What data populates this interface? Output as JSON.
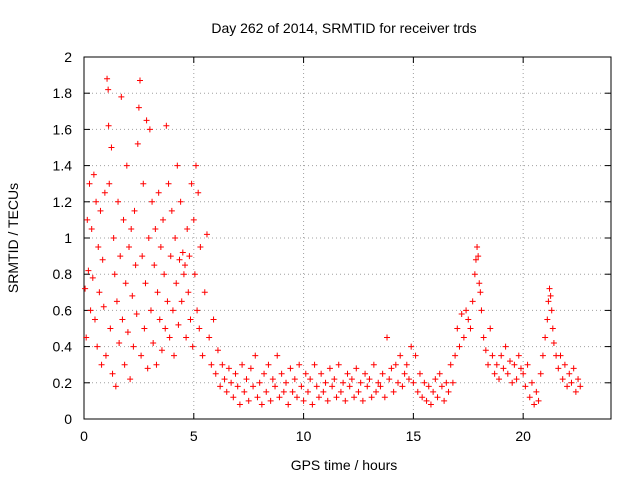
{
  "chart_data": {
    "type": "scatter",
    "title": "Day 262 of 2014, SRMTID for receiver trds",
    "xlabel": "GPS time / hours",
    "ylabel": "SRMTID / TECUs",
    "xlim": [
      0,
      24
    ],
    "ylim": [
      0,
      2
    ],
    "xticks": [
      0,
      5,
      10,
      15,
      20
    ],
    "yticks": [
      0,
      0.2,
      0.4,
      0.6,
      0.8,
      1,
      1.2,
      1.4,
      1.6,
      1.8,
      2
    ],
    "xtick_labels": [
      "0",
      "5",
      "10",
      "15",
      "20"
    ],
    "ytick_labels": [
      "0",
      "0.2",
      "0.4",
      "0.6",
      "0.8",
      "1",
      "1.2",
      "1.4",
      "1.6",
      "1.8",
      "2"
    ],
    "grid": true,
    "marker": "+",
    "color": "#ff0000",
    "series": [
      {
        "name": "SRMTID",
        "points": [
          [
            0.05,
            0.72
          ],
          [
            0.1,
            0.45
          ],
          [
            0.15,
            1.1
          ],
          [
            0.2,
            0.82
          ],
          [
            0.25,
            1.3
          ],
          [
            0.3,
            0.6
          ],
          [
            0.35,
            1.05
          ],
          [
            0.4,
            0.78
          ],
          [
            0.45,
            1.35
          ],
          [
            0.5,
            0.55
          ],
          [
            0.55,
            1.2
          ],
          [
            0.6,
            0.4
          ],
          [
            0.65,
            0.95
          ],
          [
            0.7,
            0.7
          ],
          [
            0.75,
            1.15
          ],
          [
            0.8,
            0.3
          ],
          [
            0.85,
            0.88
          ],
          [
            0.9,
            0.62
          ],
          [
            0.95,
            1.25
          ],
          [
            1.0,
            0.35
          ],
          [
            1.05,
            1.88
          ],
          [
            1.1,
            1.82
          ],
          [
            1.12,
            1.62
          ],
          [
            1.15,
            1.3
          ],
          [
            1.2,
            0.5
          ],
          [
            1.25,
            1.5
          ],
          [
            1.3,
            0.25
          ],
          [
            1.35,
            1.0
          ],
          [
            1.4,
            0.8
          ],
          [
            1.45,
            0.18
          ],
          [
            1.5,
            0.65
          ],
          [
            1.55,
            1.2
          ],
          [
            1.6,
            0.42
          ],
          [
            1.65,
            0.9
          ],
          [
            1.7,
            1.78
          ],
          [
            1.75,
            0.55
          ],
          [
            1.8,
            1.1
          ],
          [
            1.85,
            0.3
          ],
          [
            1.9,
            0.75
          ],
          [
            1.95,
            1.4
          ],
          [
            2.0,
            0.48
          ],
          [
            2.05,
            0.95
          ],
          [
            2.1,
            0.22
          ],
          [
            2.15,
            1.05
          ],
          [
            2.2,
            0.68
          ],
          [
            2.25,
            0.4
          ],
          [
            2.3,
            1.15
          ],
          [
            2.35,
            0.85
          ],
          [
            2.4,
            0.58
          ],
          [
            2.45,
            1.52
          ],
          [
            2.5,
            1.72
          ],
          [
            2.55,
            1.87
          ],
          [
            2.6,
            0.35
          ],
          [
            2.65,
            0.9
          ],
          [
            2.7,
            1.3
          ],
          [
            2.75,
            0.5
          ],
          [
            2.8,
            0.75
          ],
          [
            2.85,
            1.65
          ],
          [
            2.9,
            0.28
          ],
          [
            2.95,
            1.0
          ],
          [
            3.0,
            1.6
          ],
          [
            3.05,
            0.6
          ],
          [
            3.1,
            1.2
          ],
          [
            3.15,
            0.42
          ],
          [
            3.2,
            0.85
          ],
          [
            3.25,
            1.05
          ],
          [
            3.3,
            0.3
          ],
          [
            3.35,
            0.7
          ],
          [
            3.4,
            1.25
          ],
          [
            3.45,
            0.55
          ],
          [
            3.5,
            0.95
          ],
          [
            3.55,
            0.38
          ],
          [
            3.6,
            1.1
          ],
          [
            3.65,
            0.8
          ],
          [
            3.7,
            0.5
          ],
          [
            3.75,
            1.62
          ],
          [
            3.8,
            0.65
          ],
          [
            3.85,
            1.3
          ],
          [
            3.9,
            0.45
          ],
          [
            3.95,
            0.9
          ],
          [
            4.0,
            1.15
          ],
          [
            4.05,
            0.6
          ],
          [
            4.1,
            0.35
          ],
          [
            4.15,
            1.0
          ],
          [
            4.2,
            0.75
          ],
          [
            4.25,
            1.4
          ],
          [
            4.3,
            0.52
          ],
          [
            4.35,
            0.88
          ],
          [
            4.4,
            1.2
          ],
          [
            4.45,
            0.65
          ],
          [
            4.5,
            0.92
          ],
          [
            4.55,
            0.8
          ],
          [
            4.6,
            0.85
          ],
          [
            4.65,
            0.45
          ],
          [
            4.7,
            1.05
          ],
          [
            4.75,
            0.7
          ],
          [
            4.8,
            0.9
          ],
          [
            4.85,
            0.55
          ],
          [
            4.9,
            1.3
          ],
          [
            4.95,
            0.4
          ],
          [
            5.0,
            1.1
          ],
          [
            5.05,
            0.8
          ],
          [
            5.1,
            1.4
          ],
          [
            5.15,
            0.6
          ],
          [
            5.2,
            1.25
          ],
          [
            5.25,
            0.5
          ],
          [
            5.3,
            0.95
          ],
          [
            5.4,
            0.35
          ],
          [
            5.5,
            0.7
          ],
          [
            5.6,
            1.02
          ],
          [
            5.7,
            0.45
          ],
          [
            5.8,
            0.3
          ],
          [
            5.9,
            0.55
          ],
          [
            6.0,
            0.25
          ],
          [
            6.1,
            0.38
          ],
          [
            6.2,
            0.18
          ],
          [
            6.3,
            0.3
          ],
          [
            6.4,
            0.22
          ],
          [
            6.5,
            0.15
          ],
          [
            6.6,
            0.28
          ],
          [
            6.7,
            0.2
          ],
          [
            6.8,
            0.12
          ],
          [
            6.9,
            0.25
          ],
          [
            7.0,
            0.18
          ],
          [
            7.1,
            0.08
          ],
          [
            7.2,
            0.3
          ],
          [
            7.3,
            0.15
          ],
          [
            7.4,
            0.22
          ],
          [
            7.5,
            0.1
          ],
          [
            7.6,
            0.28
          ],
          [
            7.7,
            0.18
          ],
          [
            7.8,
            0.35
          ],
          [
            7.9,
            0.12
          ],
          [
            8.0,
            0.2
          ],
          [
            8.1,
            0.08
          ],
          [
            8.2,
            0.25
          ],
          [
            8.3,
            0.15
          ],
          [
            8.4,
            0.3
          ],
          [
            8.5,
            0.1
          ],
          [
            8.6,
            0.22
          ],
          [
            8.7,
            0.18
          ],
          [
            8.8,
            0.35
          ],
          [
            8.9,
            0.12
          ],
          [
            9.0,
            0.25
          ],
          [
            9.1,
            0.15
          ],
          [
            9.2,
            0.2
          ],
          [
            9.3,
            0.08
          ],
          [
            9.4,
            0.28
          ],
          [
            9.5,
            0.15
          ],
          [
            9.6,
            0.22
          ],
          [
            9.7,
            0.12
          ],
          [
            9.8,
            0.3
          ],
          [
            9.9,
            0.18
          ],
          [
            10.0,
            0.1
          ],
          [
            10.1,
            0.25
          ],
          [
            10.2,
            0.15
          ],
          [
            10.3,
            0.22
          ],
          [
            10.4,
            0.08
          ],
          [
            10.5,
            0.3
          ],
          [
            10.6,
            0.18
          ],
          [
            10.7,
            0.12
          ],
          [
            10.8,
            0.25
          ],
          [
            10.9,
            0.15
          ],
          [
            11.0,
            0.2
          ],
          [
            11.1,
            0.1
          ],
          [
            11.2,
            0.28
          ],
          [
            11.3,
            0.18
          ],
          [
            11.4,
            0.22
          ],
          [
            11.5,
            0.12
          ],
          [
            11.6,
            0.3
          ],
          [
            11.7,
            0.15
          ],
          [
            11.8,
            0.2
          ],
          [
            11.9,
            0.1
          ],
          [
            12.0,
            0.25
          ],
          [
            12.1,
            0.18
          ],
          [
            12.2,
            0.22
          ],
          [
            12.3,
            0.12
          ],
          [
            12.4,
            0.28
          ],
          [
            12.5,
            0.15
          ],
          [
            12.6,
            0.2
          ],
          [
            12.7,
            0.1
          ],
          [
            12.8,
            0.25
          ],
          [
            12.9,
            0.18
          ],
          [
            13.0,
            0.22
          ],
          [
            13.1,
            0.12
          ],
          [
            13.2,
            0.3
          ],
          [
            13.3,
            0.15
          ],
          [
            13.4,
            0.2
          ],
          [
            13.5,
            0.18
          ],
          [
            13.6,
            0.25
          ],
          [
            13.7,
            0.12
          ],
          [
            13.8,
            0.45
          ],
          [
            13.9,
            0.22
          ],
          [
            14.0,
            0.28
          ],
          [
            14.1,
            0.15
          ],
          [
            14.2,
            0.3
          ],
          [
            14.3,
            0.2
          ],
          [
            14.4,
            0.35
          ],
          [
            14.5,
            0.18
          ],
          [
            14.6,
            0.25
          ],
          [
            14.7,
            0.3
          ],
          [
            14.8,
            0.22
          ],
          [
            14.9,
            0.4
          ],
          [
            15.0,
            0.2
          ],
          [
            15.1,
            0.35
          ],
          [
            15.2,
            0.15
          ],
          [
            15.3,
            0.25
          ],
          [
            15.4,
            0.12
          ],
          [
            15.5,
            0.2
          ],
          [
            15.6,
            0.1
          ],
          [
            15.7,
            0.18
          ],
          [
            15.8,
            0.08
          ],
          [
            15.9,
            0.15
          ],
          [
            16.0,
            0.22
          ],
          [
            16.1,
            0.12
          ],
          [
            16.2,
            0.25
          ],
          [
            16.3,
            0.18
          ],
          [
            16.4,
            0.1
          ],
          [
            16.5,
            0.2
          ],
          [
            16.6,
            0.15
          ],
          [
            16.7,
            0.3
          ],
          [
            16.8,
            0.2
          ],
          [
            16.9,
            0.35
          ],
          [
            17.0,
            0.5
          ],
          [
            17.1,
            0.4
          ],
          [
            17.2,
            0.58
          ],
          [
            17.3,
            0.45
          ],
          [
            17.4,
            0.6
          ],
          [
            17.5,
            0.55
          ],
          [
            17.6,
            0.5
          ],
          [
            17.7,
            0.65
          ],
          [
            17.8,
            0.8
          ],
          [
            17.85,
            0.88
          ],
          [
            17.9,
            0.95
          ],
          [
            17.95,
            0.9
          ],
          [
            18.0,
            0.75
          ],
          [
            18.05,
            0.7
          ],
          [
            18.1,
            0.6
          ],
          [
            18.2,
            0.45
          ],
          [
            18.3,
            0.38
          ],
          [
            18.4,
            0.3
          ],
          [
            18.5,
            0.5
          ],
          [
            18.6,
            0.35
          ],
          [
            18.7,
            0.25
          ],
          [
            18.8,
            0.3
          ],
          [
            18.9,
            0.22
          ],
          [
            19.0,
            0.35
          ],
          [
            19.1,
            0.28
          ],
          [
            19.2,
            0.4
          ],
          [
            19.3,
            0.25
          ],
          [
            19.4,
            0.32
          ],
          [
            19.5,
            0.2
          ],
          [
            19.6,
            0.3
          ],
          [
            19.7,
            0.22
          ],
          [
            19.8,
            0.35
          ],
          [
            19.9,
            0.28
          ],
          [
            20.0,
            0.25
          ],
          [
            20.1,
            0.18
          ],
          [
            20.2,
            0.3
          ],
          [
            20.3,
            0.12
          ],
          [
            20.4,
            0.2
          ],
          [
            20.5,
            0.08
          ],
          [
            20.6,
            0.15
          ],
          [
            20.7,
            0.1
          ],
          [
            20.8,
            0.25
          ],
          [
            20.9,
            0.35
          ],
          [
            21.0,
            0.45
          ],
          [
            21.1,
            0.55
          ],
          [
            21.15,
            0.65
          ],
          [
            21.2,
            0.72
          ],
          [
            21.25,
            0.68
          ],
          [
            21.3,
            0.6
          ],
          [
            21.35,
            0.5
          ],
          [
            21.4,
            0.42
          ],
          [
            21.5,
            0.35
          ],
          [
            21.6,
            0.28
          ],
          [
            21.7,
            0.35
          ],
          [
            21.8,
            0.22
          ],
          [
            21.9,
            0.3
          ],
          [
            22.0,
            0.18
          ],
          [
            22.1,
            0.25
          ],
          [
            22.2,
            0.2
          ],
          [
            22.3,
            0.28
          ],
          [
            22.4,
            0.15
          ],
          [
            22.5,
            0.22
          ],
          [
            22.6,
            0.18
          ]
        ]
      }
    ]
  }
}
